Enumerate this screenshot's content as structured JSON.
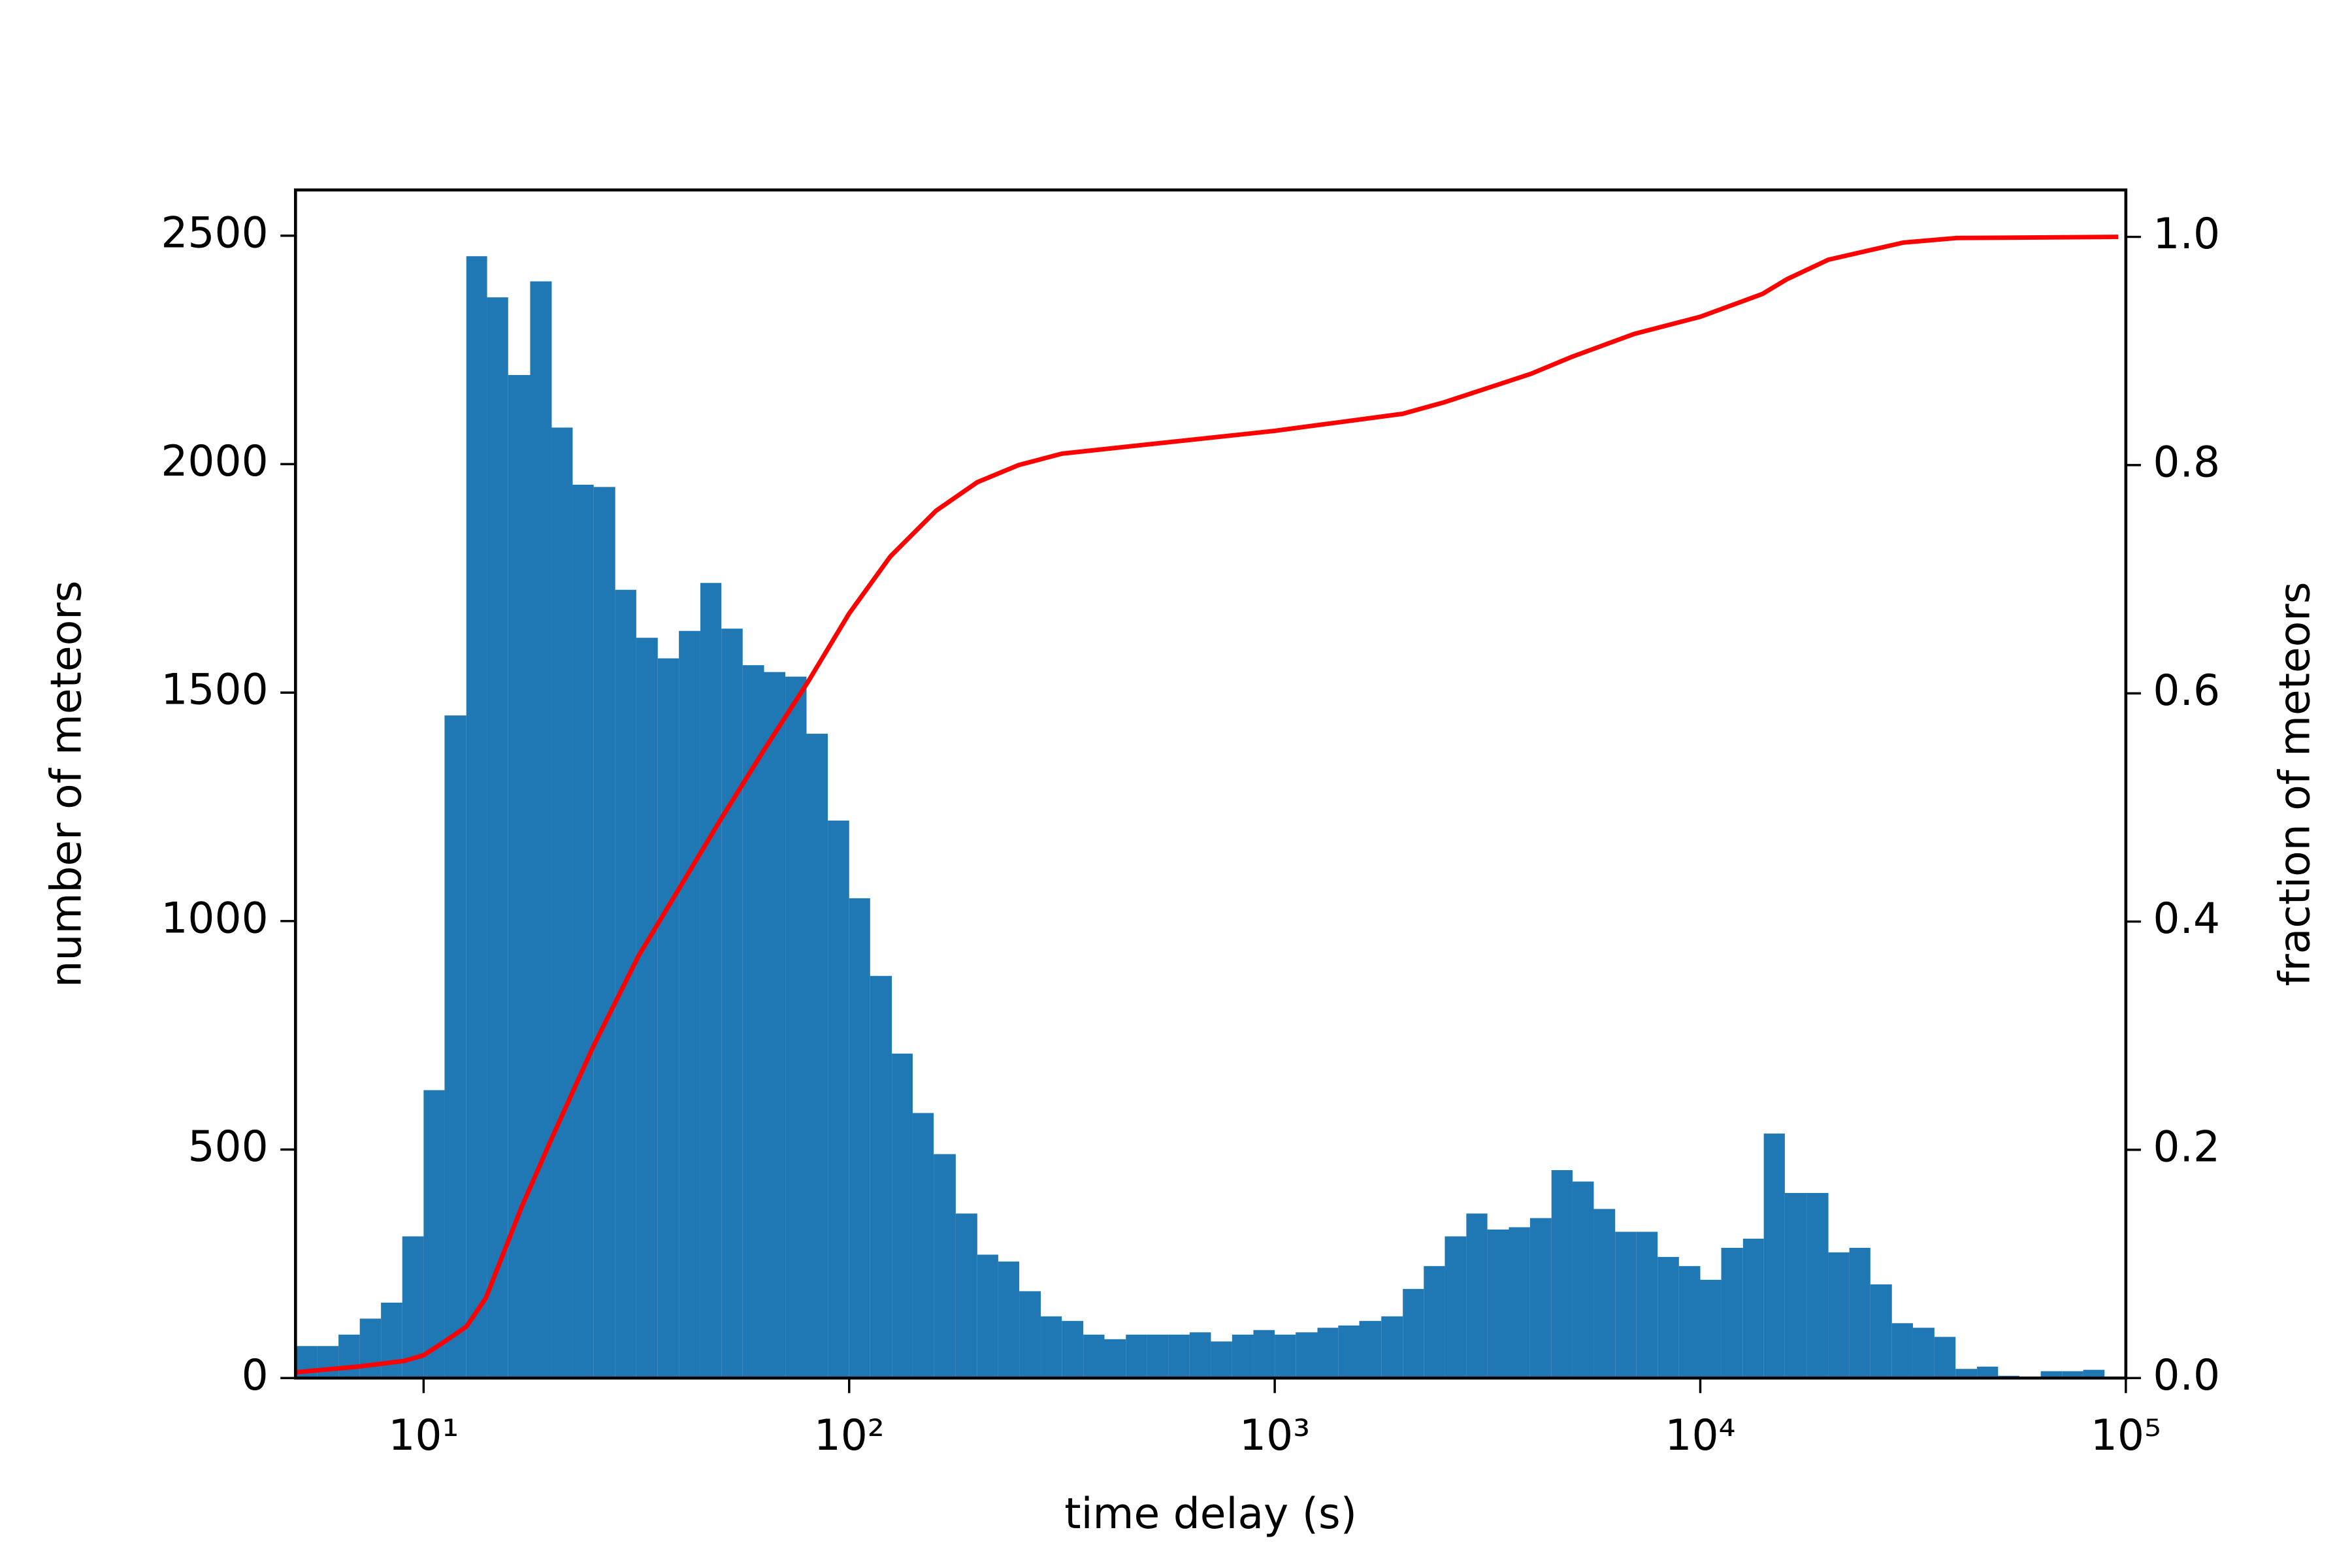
{
  "chart_data": {
    "type": "histogram",
    "xlabel": "time delay (s)",
    "ylabel": "number of meteors",
    "y2label": "fraction of meteors",
    "xscale": "log",
    "xlim": [
      5,
      100000
    ],
    "xticks": [
      {
        "value": 10,
        "label": "10¹"
      },
      {
        "value": 100,
        "label": "10²"
      },
      {
        "value": 1000,
        "label": "10³"
      },
      {
        "value": 10000,
        "label": "10⁴"
      },
      {
        "value": 100000,
        "label": "10⁵"
      }
    ],
    "ylim": [
      0,
      2600
    ],
    "yticks": [
      0,
      500,
      1000,
      1500,
      2000,
      2500
    ],
    "y2lim": [
      0,
      1.0411
    ],
    "y2ticks": [
      {
        "value": 0,
        "label": "0.0"
      },
      {
        "value": 0.2,
        "label": "0.2"
      },
      {
        "value": 0.4,
        "label": "0.4"
      },
      {
        "value": 0.6,
        "label": "0.6"
      },
      {
        "value": 0.8,
        "label": "0.8"
      },
      {
        "value": 1.0,
        "label": "1.0"
      }
    ],
    "color": "#1f77b4",
    "bins": [
      5.01,
      5.62,
      6.31,
      7.08,
      7.94,
      8.91,
      10,
      11.2,
      12.6,
      14.1,
      15.8,
      17.8,
      20,
      22.4,
      25.1,
      28.2,
      31.6,
      35.5,
      39.8,
      44.7,
      50.1,
      56.2,
      63.1,
      70.8,
      79.4,
      89.1,
      100,
      112,
      126,
      141,
      158,
      178,
      200,
      224,
      251,
      282,
      316,
      355,
      398,
      447,
      501,
      562,
      631,
      708,
      794,
      891,
      1000,
      1120,
      1260,
      1410,
      1580,
      1780,
      2000,
      2240,
      2510,
      2820,
      3160,
      3550,
      3980,
      4470,
      5010,
      5620,
      6310,
      7080,
      7940,
      8910,
      10000,
      11200,
      12600,
      14100,
      15800,
      17800,
      20000,
      22400,
      25100,
      28200,
      31600,
      35500,
      39800,
      44700,
      50100,
      56200,
      63100,
      70800,
      79400,
      89100
    ],
    "counts": [
      70,
      70,
      95,
      130,
      165,
      310,
      630,
      1450,
      2455,
      2365,
      2195,
      2400,
      2080,
      1955,
      1950,
      1725,
      1620,
      1575,
      1635,
      1740,
      1640,
      1560,
      1545,
      1535,
      1410,
      1220,
      1050,
      880,
      710,
      580,
      490,
      360,
      270,
      255,
      190,
      135,
      125,
      95,
      85,
      95,
      95,
      95,
      100,
      80,
      95,
      105,
      95,
      100,
      110,
      115,
      125,
      135,
      195,
      245,
      310,
      360,
      325,
      330,
      350,
      455,
      430,
      370,
      320,
      320,
      265,
      245,
      215,
      285,
      305,
      535,
      405,
      405,
      275,
      285,
      205,
      120,
      110,
      90,
      20,
      25,
      5,
      3,
      15,
      15,
      18
    ],
    "series": [
      {
        "type": "line",
        "axis": "y2",
        "color": "#ff0000",
        "x": [
          5,
          7,
          9,
          10,
          11,
          12.6,
          14,
          17,
          20,
          25,
          32,
          40,
          50,
          63,
          80,
          100,
          125,
          160,
          200,
          250,
          316,
          500,
          1000,
          2000,
          2500,
          4000,
          5000,
          7000,
          10000,
          14000,
          16000,
          20000,
          30000,
          40000,
          96000
        ],
        "values": [
          0.005,
          0.01,
          0.015,
          0.02,
          0.03,
          0.045,
          0.07,
          0.15,
          0.21,
          0.29,
          0.37,
          0.43,
          0.49,
          0.55,
          0.61,
          0.67,
          0.72,
          0.76,
          0.785,
          0.8,
          0.81,
          0.818,
          0.83,
          0.845,
          0.855,
          0.88,
          0.895,
          0.915,
          0.93,
          0.95,
          0.963,
          0.98,
          0.995,
          0.999,
          1.0
        ]
      }
    ]
  }
}
